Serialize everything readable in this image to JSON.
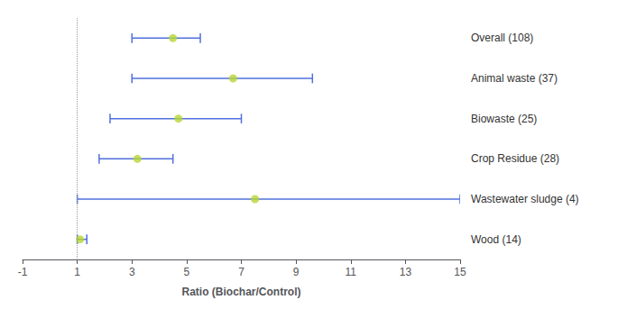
{
  "chart_data": {
    "type": "forest",
    "categories": [
      "Overall (108)",
      "Animal waste (37)",
      "Biowaste (25)",
      "Crop Residue (28)",
      "Wastewater sludge (4)",
      "Wood (14)"
    ],
    "values": [
      4.5,
      6.7,
      4.7,
      3.2,
      7.5,
      1.1
    ],
    "ci_low": [
      3.0,
      3.0,
      2.2,
      1.8,
      1.0,
      1.0
    ],
    "ci_high": [
      5.5,
      9.6,
      7.0,
      4.5,
      15.0,
      1.35
    ],
    "ref_line": 1.0,
    "xlim": [
      -1,
      15
    ],
    "xticks": [
      -1,
      1,
      3,
      5,
      7,
      9,
      11,
      13,
      15
    ],
    "xlabel": "Ratio (Biochar/Control)",
    "grid": false
  }
}
